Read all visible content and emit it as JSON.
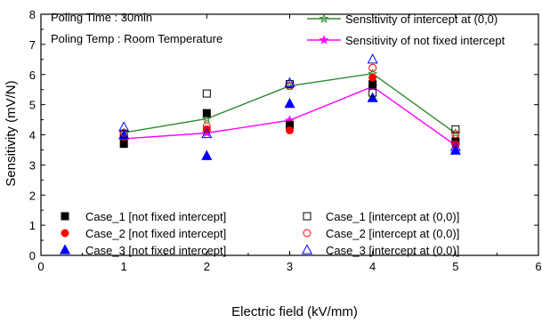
{
  "chart_data": {
    "type": "scatter",
    "xlabel": "Electric field (kV/mm)",
    "ylabel": "Sensitivity (mV/N)",
    "xlim": [
      0,
      6
    ],
    "ylim": [
      0,
      8
    ],
    "x_ticks": [
      "0",
      "1",
      "2",
      "3",
      "4",
      "5",
      "6"
    ],
    "y_ticks": [
      "0",
      "1",
      "2",
      "3",
      "4",
      "5",
      "6",
      "7",
      "8"
    ],
    "grid": false,
    "annotations": [
      "Poling Time : 30min",
      "Poling Temp : Room Temperature"
    ],
    "lines": [
      {
        "name": "Sensitivity of intercept at (0,0)",
        "color": "#2e8b2e",
        "marker": "star-open",
        "x": [
          1,
          2,
          3,
          4,
          5
        ],
        "y": [
          4.07,
          4.53,
          5.62,
          6.03,
          4.05
        ]
      },
      {
        "name": "Sensitivity of not fixed intercept",
        "color": "#ff00ff",
        "marker": "star-filled",
        "x": [
          1,
          2,
          3,
          4,
          5
        ],
        "y": [
          3.87,
          4.06,
          4.48,
          5.6,
          3.65
        ]
      }
    ],
    "series": [
      {
        "name": "Case_1 [not fixed intercept]",
        "color": "#000000",
        "marker": "square",
        "filled": true,
        "x": [
          1,
          2,
          3,
          4,
          5
        ],
        "y": [
          3.7,
          4.72,
          4.33,
          5.68,
          3.78
        ]
      },
      {
        "name": "Case_2 [not fixed intercept]",
        "color": "#ff0000",
        "marker": "circle",
        "filled": true,
        "x": [
          1,
          2,
          3,
          4,
          5
        ],
        "y": [
          3.93,
          4.18,
          4.15,
          5.9,
          3.68
        ]
      },
      {
        "name": "Case_3 [not fixed intercept]",
        "color": "#0000ff",
        "marker": "triangle",
        "filled": true,
        "x": [
          1,
          2,
          3,
          4,
          5
        ],
        "y": [
          3.98,
          3.3,
          5.03,
          5.22,
          3.48
        ]
      },
      {
        "name": "Case_1 [intercept at (0,0)]",
        "color": "#000000",
        "marker": "square",
        "filled": false,
        "x": [
          1,
          2,
          3,
          4,
          5
        ],
        "y": [
          4.03,
          5.37,
          5.68,
          5.4,
          4.18
        ]
      },
      {
        "name": "Case_2 [intercept at (0,0)]",
        "color": "#ff0000",
        "marker": "circle",
        "filled": false,
        "x": [
          1,
          2,
          3,
          4,
          5
        ],
        "y": [
          4.07,
          4.28,
          5.62,
          6.22,
          4.02
        ]
      },
      {
        "name": "Case_3 [intercept at (0,0)]",
        "color": "#0000ff",
        "marker": "triangle",
        "filled": false,
        "x": [
          1,
          2,
          3,
          4,
          5
        ],
        "y": [
          4.25,
          4.03,
          5.72,
          6.5,
          3.6
        ]
      }
    ],
    "legend_placement": "top-right and bottom-left"
  }
}
